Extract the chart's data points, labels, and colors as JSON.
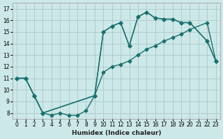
{
  "xlabel": "Humidex (Indice chaleur)",
  "bg_color": "#cde8e8",
  "grid_color": "#b0cccc",
  "line_color": "#1a7070",
  "marker": "D",
  "markersize": 2.5,
  "linewidth": 1.0,
  "xlim": [
    -0.5,
    23.5
  ],
  "ylim": [
    7.5,
    17.5
  ],
  "xticks": [
    0,
    1,
    2,
    3,
    4,
    5,
    6,
    7,
    8,
    9,
    10,
    11,
    12,
    13,
    14,
    15,
    16,
    17,
    18,
    19,
    20,
    21,
    22,
    23
  ],
  "yticks": [
    8,
    9,
    10,
    11,
    12,
    13,
    14,
    15,
    16,
    17
  ],
  "curves": [
    {
      "x": [
        0,
        1,
        2,
        3,
        9,
        10,
        11,
        12,
        13,
        14,
        15,
        16,
        17,
        18,
        19,
        20,
        22,
        23
      ],
      "y": [
        11.0,
        11.0,
        9.5,
        8.0,
        9.5,
        15.0,
        15.5,
        15.8,
        13.8,
        16.3,
        16.7,
        16.2,
        16.1,
        16.1,
        15.8,
        15.8,
        14.2,
        12.5
      ]
    },
    {
      "x": [
        0,
        1,
        2,
        3,
        9,
        10,
        11,
        12,
        13,
        14,
        15,
        16,
        17,
        18,
        19,
        20,
        22,
        23
      ],
      "y": [
        11.0,
        11.0,
        9.5,
        8.0,
        9.5,
        11.5,
        12.0,
        12.2,
        12.5,
        13.0,
        13.5,
        13.8,
        14.2,
        14.5,
        14.8,
        15.2,
        15.8,
        12.5
      ]
    },
    {
      "x": [
        0,
        1,
        2,
        3,
        4,
        5,
        6,
        7,
        8,
        9,
        10,
        11,
        12,
        13,
        14,
        15,
        16,
        17,
        18,
        19,
        20,
        22,
        23
      ],
      "y": [
        11.0,
        11.0,
        9.5,
        8.0,
        7.8,
        8.0,
        7.8,
        7.8,
        8.2,
        9.5,
        15.0,
        15.5,
        15.8,
        13.8,
        16.3,
        16.7,
        16.2,
        16.1,
        16.1,
        15.8,
        15.8,
        14.2,
        12.5
      ]
    }
  ]
}
